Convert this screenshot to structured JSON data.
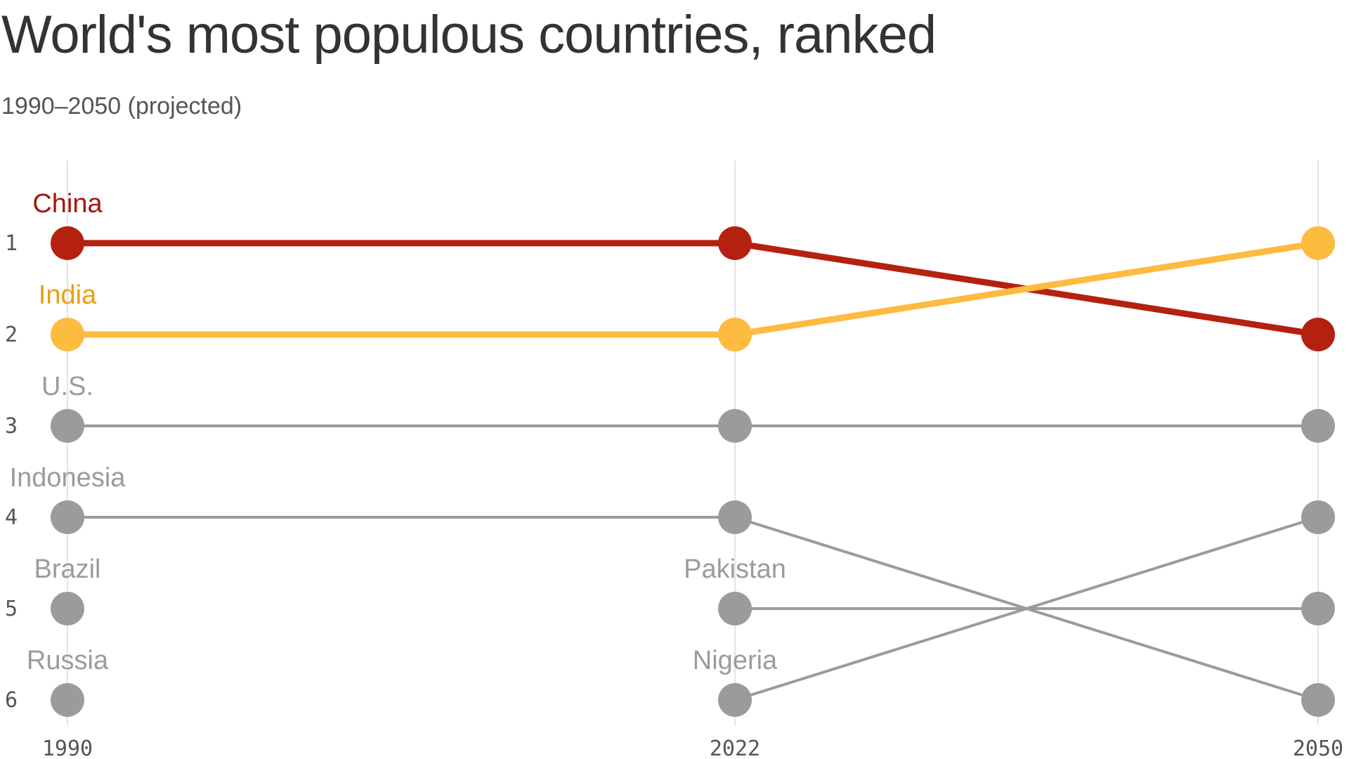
{
  "title": "World's most populous countries, ranked",
  "subtitle": "1990–2050 (projected)",
  "colors": {
    "China": "#b5210f",
    "China_label": "#a5180a",
    "India": "#fdbb3f",
    "India_label": "#e8a010",
    "other": "#9b9b9b",
    "other_label": "#9b9b9b",
    "gridline": "#e4e4e4"
  },
  "chart_data": {
    "type": "line",
    "subtype": "bump",
    "x": [
      "1990",
      "2022",
      "2050"
    ],
    "y_ticks": [
      1,
      2,
      3,
      4,
      5,
      6
    ],
    "y_reversed": true,
    "grid": "vertical",
    "series": [
      {
        "name": "China",
        "ranks": [
          1,
          1,
          2
        ],
        "color": "China",
        "label_at": "1990"
      },
      {
        "name": "India",
        "ranks": [
          2,
          2,
          1
        ],
        "color": "India",
        "label_at": "1990"
      },
      {
        "name": "U.S.",
        "ranks": [
          3,
          3,
          3
        ],
        "color": "other",
        "label_at": "1990"
      },
      {
        "name": "Indonesia",
        "ranks": [
          4,
          4,
          6
        ],
        "color": "other",
        "label_at": "1990"
      },
      {
        "name": "Brazil",
        "ranks": [
          5,
          null,
          null
        ],
        "color": "other",
        "label_at": "1990"
      },
      {
        "name": "Russia",
        "ranks": [
          6,
          null,
          null
        ],
        "color": "other",
        "label_at": "1990"
      },
      {
        "name": "Pakistan",
        "ranks": [
          null,
          5,
          5
        ],
        "color": "other",
        "label_at": "2022"
      },
      {
        "name": "Nigeria",
        "ranks": [
          null,
          6,
          4
        ],
        "color": "other",
        "label_at": "2022"
      }
    ]
  }
}
